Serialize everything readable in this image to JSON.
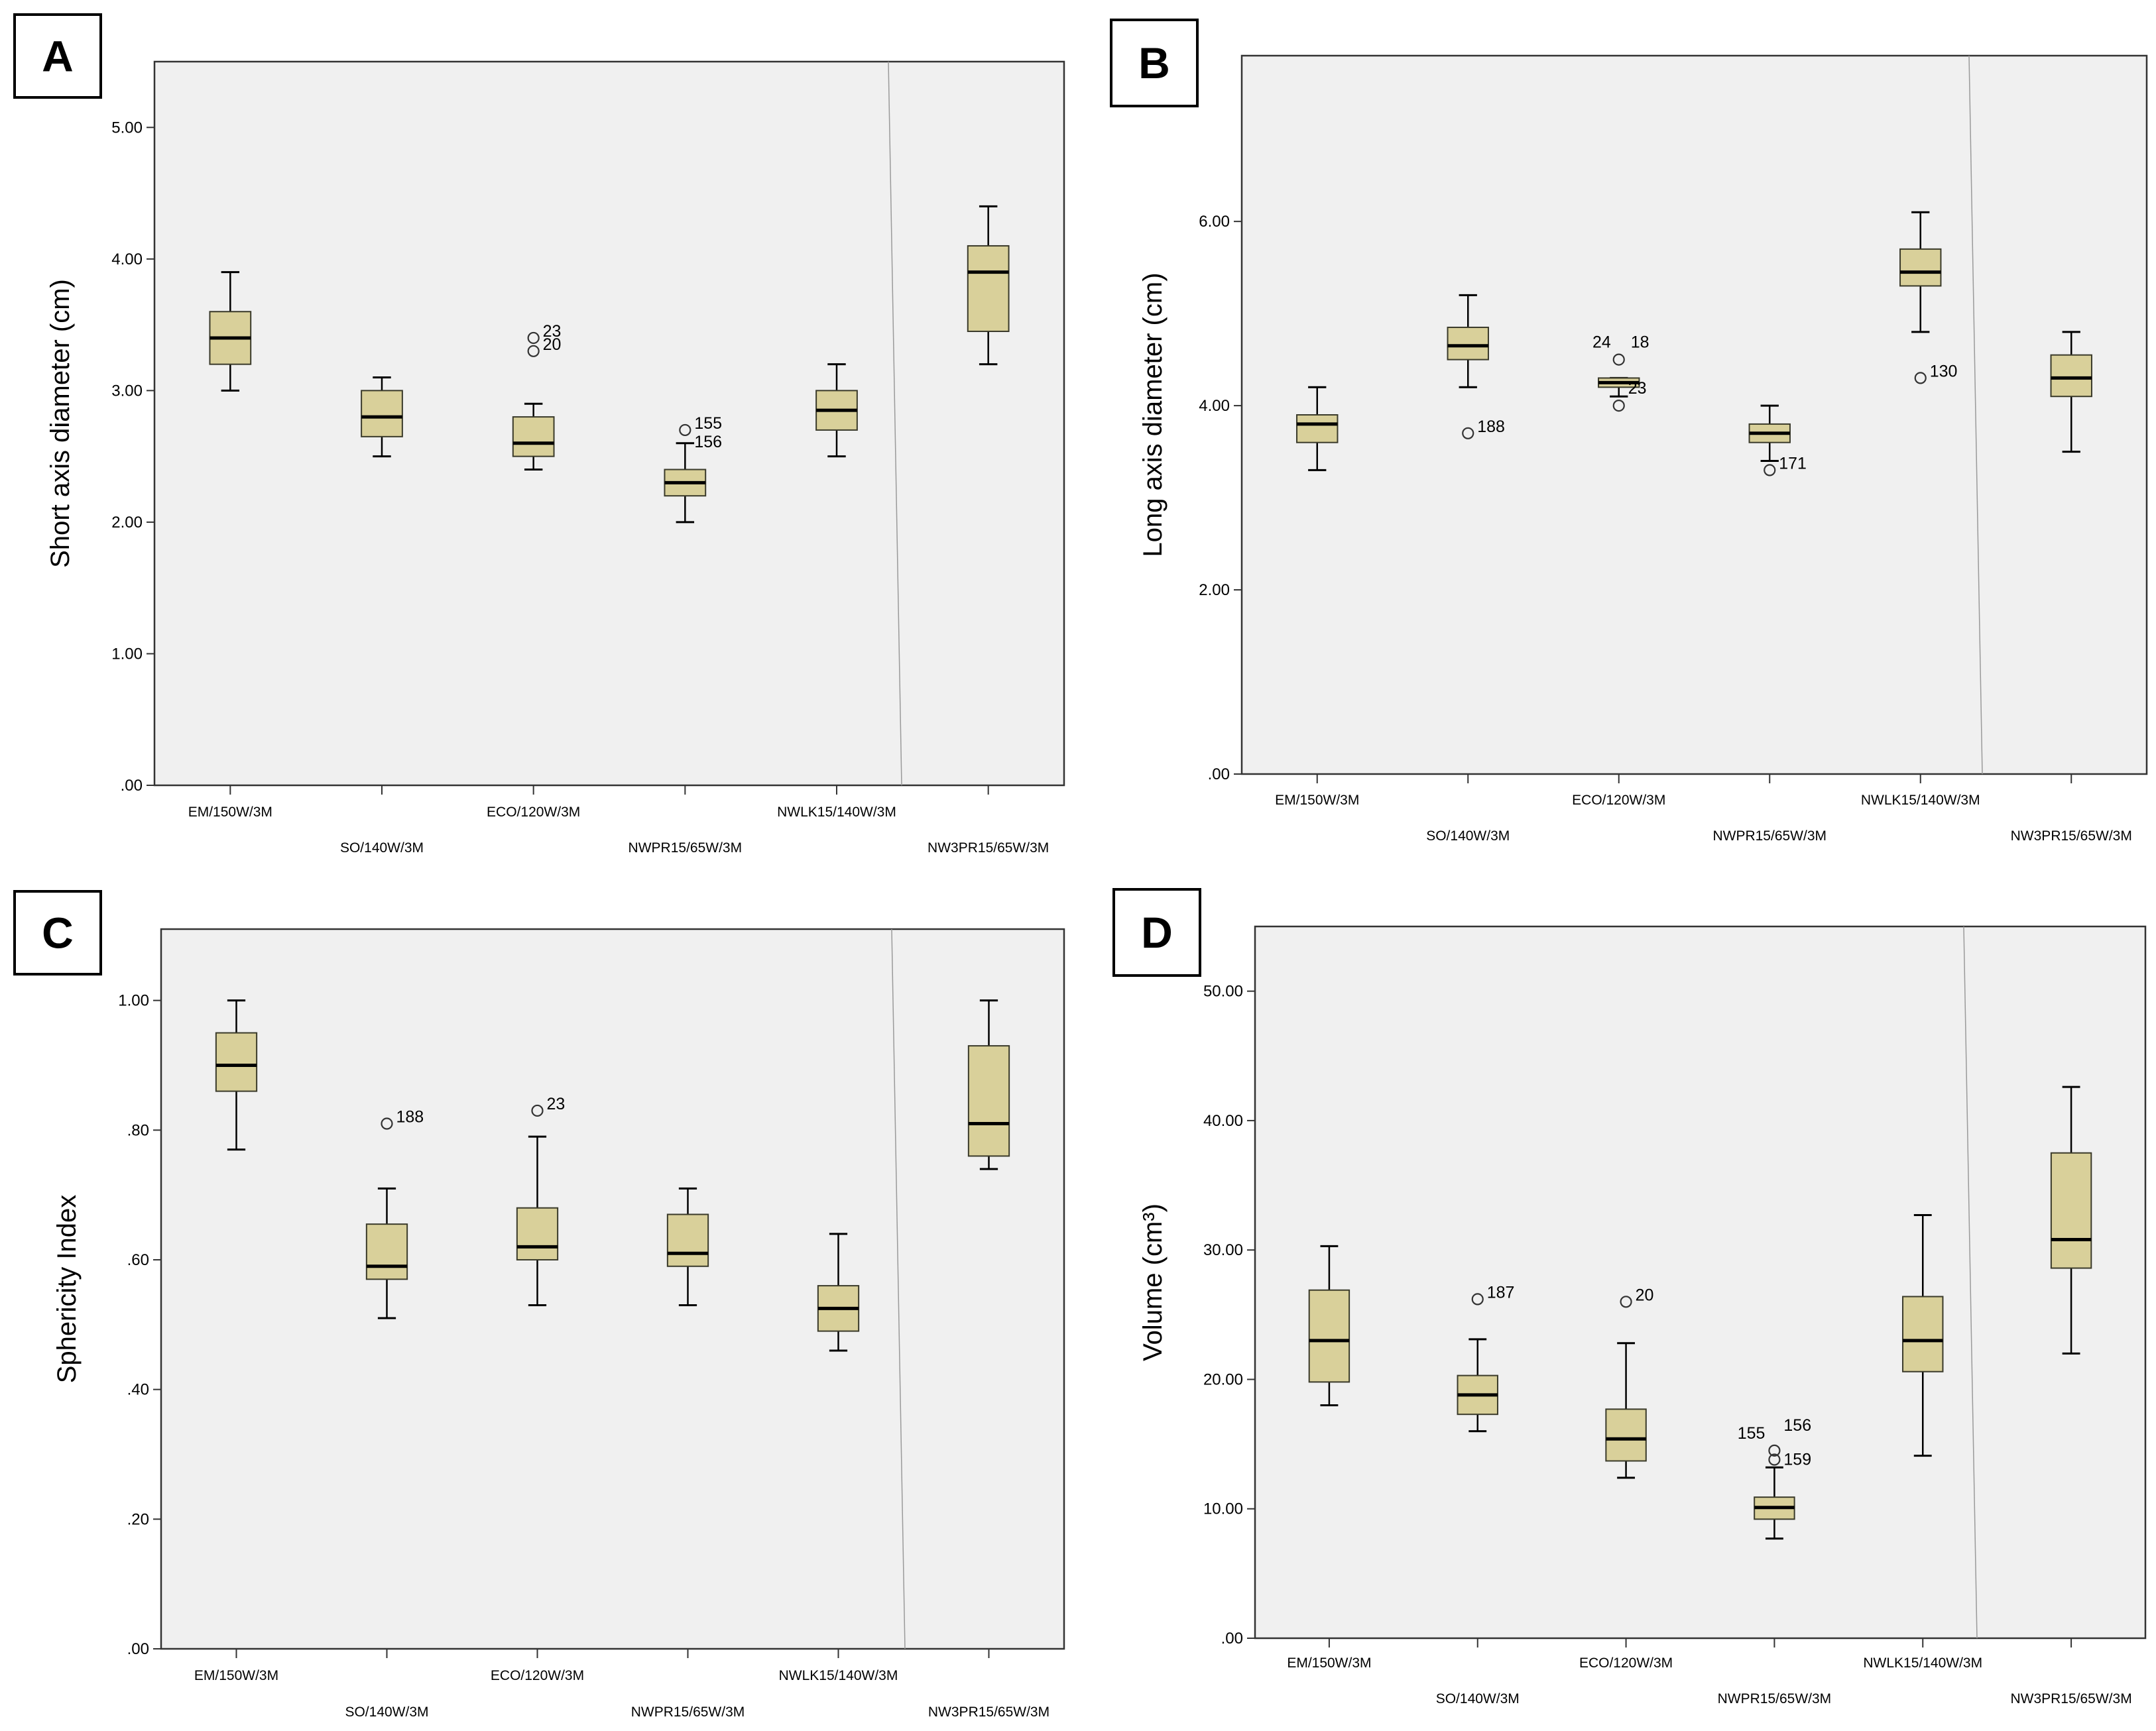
{
  "chart_data": [
    {
      "type": "box",
      "panel": "A",
      "ylabel": "Short axis diameter (cm)",
      "ylim": [
        0,
        5.5
      ],
      "yticks": [
        ".00",
        "1.00",
        "2.00",
        "3.00",
        "4.00",
        "5.00"
      ],
      "categories": [
        "EM/150W/3M",
        "SO/140W/3M",
        "ECO/120W/3M",
        "NWPR15/65W/3M",
        "NWLK15/140W/3M",
        "NW3PR15/65W/3M"
      ],
      "boxes": [
        {
          "min": 3.0,
          "q1": 3.2,
          "median": 3.4,
          "q3": 3.6,
          "max": 3.9
        },
        {
          "min": 2.5,
          "q1": 2.65,
          "median": 2.8,
          "q3": 3.0,
          "max": 3.1
        },
        {
          "min": 2.4,
          "q1": 2.5,
          "median": 2.6,
          "q3": 2.8,
          "max": 2.9
        },
        {
          "min": 2.0,
          "q1": 2.2,
          "median": 2.3,
          "q3": 2.4,
          "max": 2.6
        },
        {
          "min": 2.5,
          "q1": 2.7,
          "median": 2.85,
          "q3": 3.0,
          "max": 3.2
        },
        {
          "min": 3.2,
          "q1": 3.45,
          "median": 3.9,
          "q3": 4.1,
          "max": 4.4
        }
      ],
      "outliers": [
        {
          "box": 2,
          "value": 3.4,
          "label": "23"
        },
        {
          "box": 2,
          "value": 3.3,
          "label": "20"
        },
        {
          "box": 3,
          "value": 2.7,
          "label": "155"
        },
        {
          "box": 3,
          "value": 2.7,
          "label": "156"
        }
      ]
    },
    {
      "type": "box",
      "panel": "B",
      "ylabel": "Long axis diameter (cm)",
      "ylim": [
        0,
        7.8
      ],
      "yticks": [
        ".00",
        "2.00",
        "4.00",
        "6.00"
      ],
      "categories": [
        "EM/150W/3M",
        "SO/140W/3M",
        "ECO/120W/3M",
        "NWPR15/65W/3M",
        "NWLK15/140W/3M",
        "NW3PR15/65W/3M"
      ],
      "boxes": [
        {
          "min": 3.3,
          "q1": 3.6,
          "median": 3.8,
          "q3": 3.9,
          "max": 4.2
        },
        {
          "min": 4.2,
          "q1": 4.5,
          "median": 4.65,
          "q3": 4.85,
          "max": 5.2
        },
        {
          "min": 4.1,
          "q1": 4.2,
          "median": 4.25,
          "q3": 4.3,
          "max": 4.3
        },
        {
          "min": 3.4,
          "q1": 3.6,
          "median": 3.7,
          "q3": 3.8,
          "max": 4.0
        },
        {
          "min": 4.8,
          "q1": 5.3,
          "median": 5.45,
          "q3": 5.7,
          "max": 6.1
        },
        {
          "min": 3.5,
          "q1": 4.1,
          "median": 4.3,
          "q3": 4.55,
          "max": 4.8
        }
      ],
      "outliers": [
        {
          "box": 1,
          "value": 3.7,
          "label": "188"
        },
        {
          "box": 2,
          "value": 4.5,
          "label": "24"
        },
        {
          "box": 2,
          "value": 4.5,
          "label": "18"
        },
        {
          "box": 2,
          "value": 4.0,
          "label": "23"
        },
        {
          "box": 3,
          "value": 3.3,
          "label": "171"
        },
        {
          "box": 4,
          "value": 4.3,
          "label": "130"
        }
      ]
    },
    {
      "type": "box",
      "panel": "C",
      "ylabel": "Sphericity Index",
      "ylim": [
        0,
        1.11
      ],
      "yticks": [
        ".00",
        ".20",
        ".40",
        ".60",
        ".80",
        "1.00"
      ],
      "categories": [
        "EM/150W/3M",
        "SO/140W/3M",
        "ECO/120W/3M",
        "NWPR15/65W/3M",
        "NWLK15/140W/3M",
        "NW3PR15/65W/3M"
      ],
      "boxes": [
        {
          "min": 0.77,
          "q1": 0.86,
          "median": 0.9,
          "q3": 0.95,
          "max": 1.0
        },
        {
          "min": 0.51,
          "q1": 0.57,
          "median": 0.59,
          "q3": 0.655,
          "max": 0.71
        },
        {
          "min": 0.53,
          "q1": 0.6,
          "median": 0.62,
          "q3": 0.68,
          "max": 0.79
        },
        {
          "min": 0.53,
          "q1": 0.59,
          "median": 0.61,
          "q3": 0.67,
          "max": 0.71
        },
        {
          "min": 0.46,
          "q1": 0.49,
          "median": 0.525,
          "q3": 0.56,
          "max": 0.64
        },
        {
          "min": 0.74,
          "q1": 0.76,
          "median": 0.81,
          "q3": 0.93,
          "max": 1.0
        }
      ],
      "outliers": [
        {
          "box": 1,
          "value": 0.81,
          "label": "188"
        },
        {
          "box": 2,
          "value": 0.83,
          "label": "23"
        }
      ]
    },
    {
      "type": "box",
      "panel": "D",
      "ylabel": "Volume (cm³)",
      "ylim": [
        0,
        55
      ],
      "yticks": [
        ".00",
        "10.00",
        "20.00",
        "30.00",
        "40.00",
        "50.00"
      ],
      "categories": [
        "EM/150W/3M",
        "SO/140W/3M",
        "ECO/120W/3M",
        "NWPR15/65W/3M",
        "NWLK15/140W/3M",
        "NW3PR15/65W/3M"
      ],
      "boxes": [
        {
          "min": 18.0,
          "q1": 19.8,
          "median": 23.0,
          "q3": 26.9,
          "max": 30.3
        },
        {
          "min": 16.0,
          "q1": 17.3,
          "median": 18.8,
          "q3": 20.3,
          "max": 23.1
        },
        {
          "min": 12.4,
          "q1": 13.7,
          "median": 15.4,
          "q3": 17.7,
          "max": 22.8
        },
        {
          "min": 7.7,
          "q1": 9.2,
          "median": 10.1,
          "q3": 10.9,
          "max": 13.2
        },
        {
          "min": 14.1,
          "q1": 20.6,
          "median": 23.0,
          "q3": 26.4,
          "max": 32.7
        },
        {
          "min": 22.0,
          "q1": 28.6,
          "median": 30.8,
          "q3": 37.5,
          "max": 42.6
        }
      ],
      "outliers": [
        {
          "box": 1,
          "value": 26.2,
          "label": "187"
        },
        {
          "box": 2,
          "value": 26.0,
          "label": "20"
        },
        {
          "box": 3,
          "value": 14.5,
          "label": "155"
        },
        {
          "box": 3,
          "value": 14.5,
          "label": "156"
        },
        {
          "box": 3,
          "value": 13.8,
          "label": "159"
        }
      ]
    }
  ]
}
